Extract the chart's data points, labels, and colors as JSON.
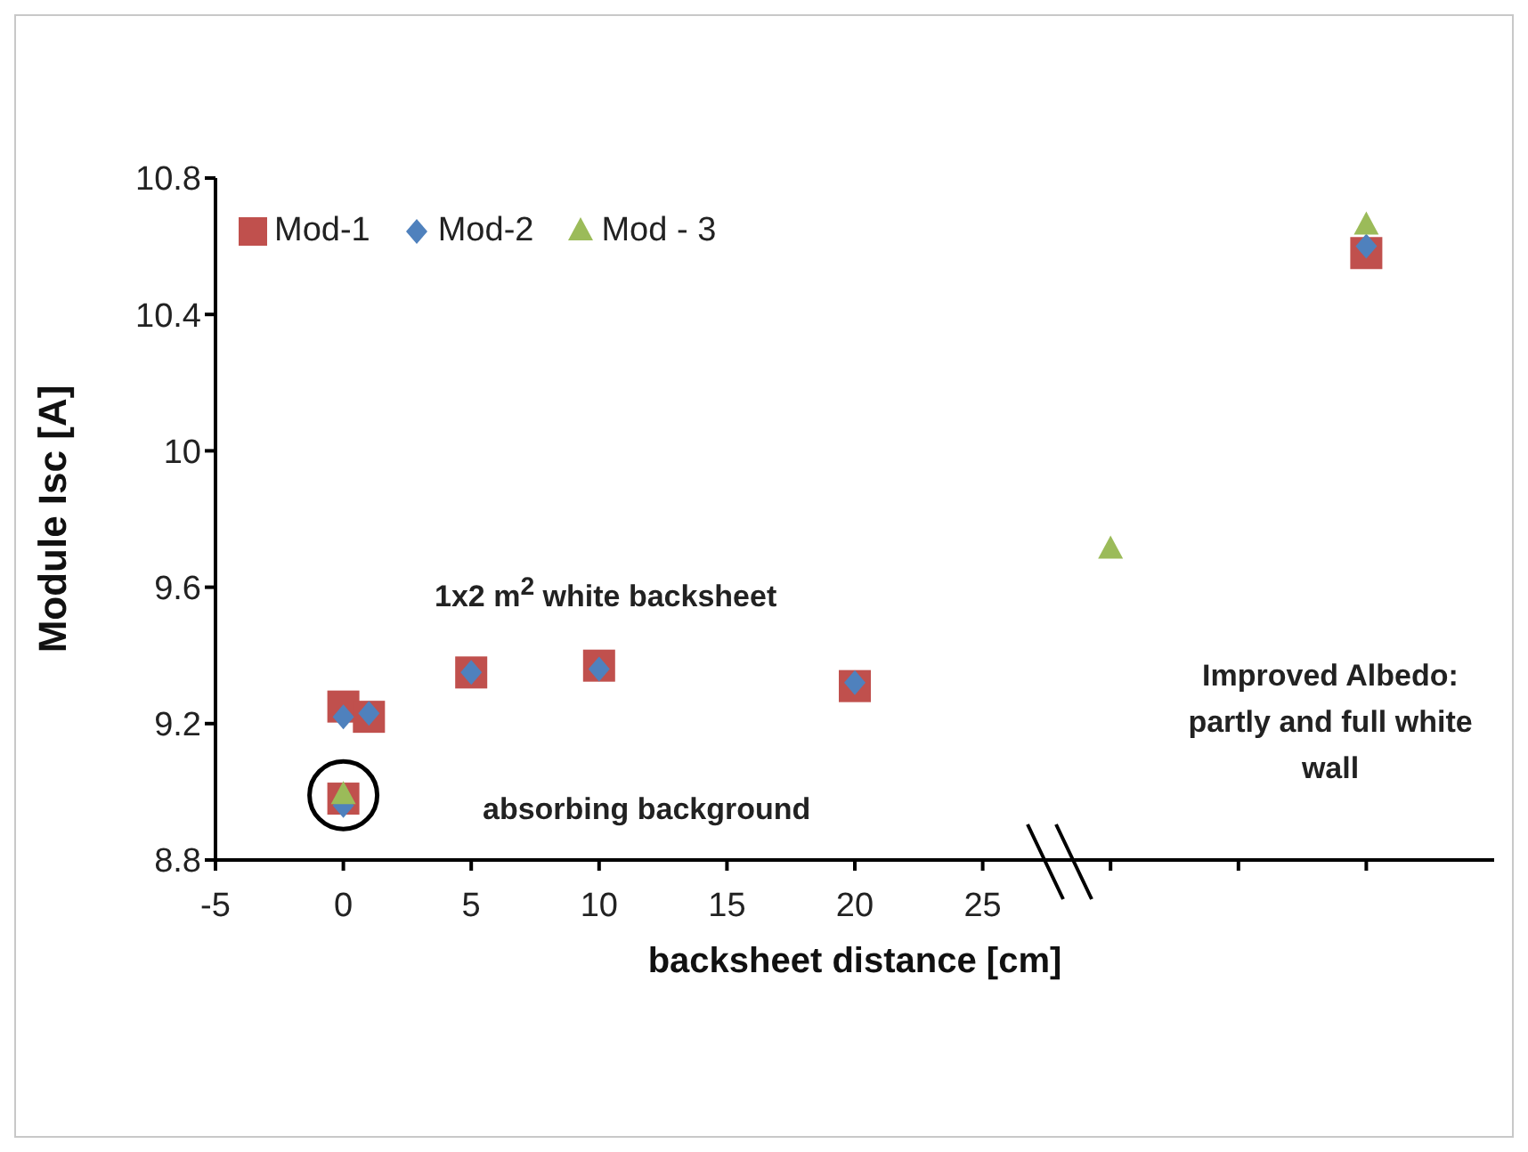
{
  "chart_data": {
    "type": "scatter",
    "xlabel": "backsheet distance [cm]",
    "ylabel": "Module Isc [A]",
    "xlim": [
      -5,
      45
    ],
    "xticks": [
      -5,
      0,
      5,
      10,
      15,
      20,
      25,
      {
        "value": 30,
        "label": null
      },
      {
        "value": 35,
        "label": null
      },
      {
        "value": 40,
        "label": null
      }
    ],
    "ylim": [
      8.8,
      10.8
    ],
    "yticks": [
      8.8,
      9.2,
      9.6,
      10,
      10.4,
      10.8
    ],
    "grid": false,
    "legend": "top left",
    "series": [
      {
        "name": "Mod-1",
        "color": "#c0504d",
        "marker": "square",
        "x": [
          0,
          1,
          5,
          10,
          20,
          0,
          40
        ],
        "values": [
          9.25,
          9.22,
          9.35,
          9.37,
          9.31,
          8.98,
          10.58
        ]
      },
      {
        "name": "Mod-2",
        "color": "#4f81bd",
        "marker": "diamond",
        "x": [
          0,
          1,
          5,
          10,
          20,
          0,
          40
        ],
        "values": [
          9.22,
          9.23,
          9.35,
          9.36,
          9.32,
          8.96,
          10.6
        ]
      },
      {
        "name": "Mod - 3",
        "color": "#9bbb59",
        "marker": "triangle",
        "x": [
          0,
          30,
          40
        ],
        "values": [
          8.99,
          9.71,
          10.66
        ]
      }
    ],
    "annotations": [
      "1x2 m$^{2}$ white backsheet",
      "absorbing background",
      "Improved Albedo: partly and full white wall"
    ]
  }
}
